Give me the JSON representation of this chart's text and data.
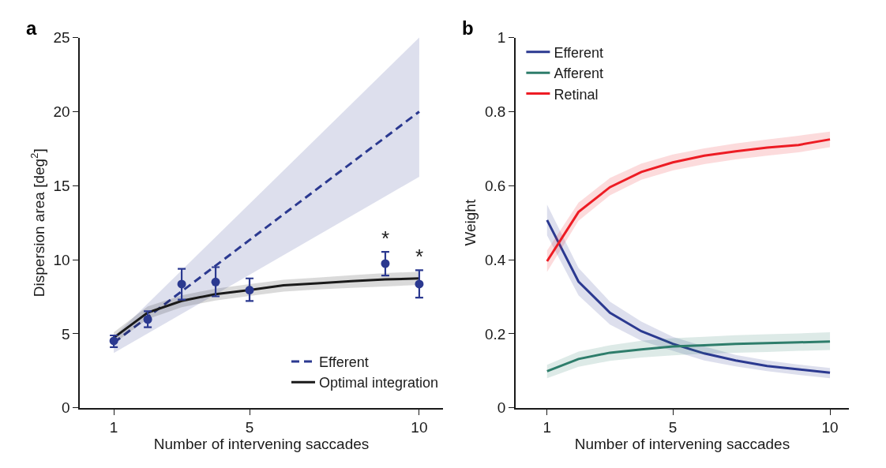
{
  "chart_data": [
    {
      "type": "line",
      "title": "a",
      "xlabel": "Number of intervening saccades",
      "ylabel": "Dispersion area [deg$^{2}$]",
      "xlim": [
        0,
        10.7
      ],
      "xticks": [
        1,
        5,
        10
      ],
      "ylim": [
        0,
        25
      ],
      "yticks": [
        0,
        5,
        10,
        15,
        20,
        25
      ],
      "legend": "bottom right",
      "series": [
        {
          "name": "Efferent",
          "type": "line",
          "line_style": "dashed",
          "color": "#2b3990",
          "x": [
            1,
            10
          ],
          "values": [
            4.4,
            20
          ],
          "lower": [
            3.7,
            15.6
          ],
          "upper": [
            4.8,
            25
          ]
        },
        {
          "name": "Optimal integration",
          "type": "line",
          "line_style": "solid",
          "color": "#1a1a1a",
          "x": [
            1,
            2,
            3,
            4,
            5,
            6,
            7,
            8,
            9,
            10
          ],
          "values": [
            4.74,
            6.43,
            7.22,
            7.68,
            7.95,
            8.27,
            8.41,
            8.56,
            8.67,
            8.74
          ],
          "lower": [
            4.35,
            6.0,
            6.8,
            7.25,
            7.55,
            7.85,
            8.0,
            8.1,
            8.2,
            8.3
          ],
          "upper": [
            5.1,
            6.85,
            7.6,
            8.05,
            8.35,
            8.65,
            8.8,
            8.95,
            9.1,
            9.2
          ]
        },
        {
          "type": "scatter",
          "marker": "circle",
          "color": "#2b3990",
          "x": [
            1,
            2,
            3,
            4,
            5,
            9,
            10
          ],
          "values": [
            4.52,
            5.97,
            8.36,
            8.5,
            7.95,
            9.74,
            8.36
          ],
          "errors": [
            [
              4.1,
              4.89
            ],
            [
              5.44,
              6.52
            ],
            [
              7.31,
              9.39
            ],
            [
              7.53,
              9.5
            ],
            [
              7.22,
              8.74
            ],
            [
              8.93,
              10.53
            ],
            [
              7.44,
              9.29
            ]
          ]
        }
      ],
      "annotations": [
        {
          "text": "*",
          "x": 9,
          "y": 10.53
        },
        {
          "text": "*",
          "x": 10,
          "y": 9.29
        }
      ]
    },
    {
      "type": "line",
      "title": "b",
      "xlabel": "Number of intervening saccades",
      "ylabel": "Weight",
      "xlim": [
        0,
        10.6
      ],
      "xticks": [
        1,
        5,
        10
      ],
      "ylim": [
        0,
        1
      ],
      "yticks": [
        0,
        0.2,
        0.4,
        0.6,
        0.8,
        1
      ],
      "legend": "top left",
      "x": [
        1,
        2,
        3,
        4,
        5,
        6,
        7,
        8,
        9,
        10
      ],
      "series": [
        {
          "name": "Efferent",
          "color": "#2b3990",
          "values": [
            0.507,
            0.341,
            0.257,
            0.207,
            0.173,
            0.147,
            0.128,
            0.113,
            0.104,
            0.095
          ],
          "lower": [
            0.466,
            0.304,
            0.225,
            0.181,
            0.154,
            0.128,
            0.112,
            0.099,
            0.089,
            0.08
          ],
          "upper": [
            0.549,
            0.378,
            0.287,
            0.233,
            0.192,
            0.166,
            0.143,
            0.128,
            0.117,
            0.108
          ]
        },
        {
          "name": "Afferent",
          "color": "#2e7d6b",
          "values": [
            0.099,
            0.132,
            0.149,
            0.158,
            0.166,
            0.169,
            0.173,
            0.175,
            0.177,
            0.179
          ],
          "lower": [
            0.08,
            0.111,
            0.127,
            0.136,
            0.142,
            0.146,
            0.149,
            0.151,
            0.154,
            0.156
          ],
          "upper": [
            0.116,
            0.152,
            0.169,
            0.181,
            0.188,
            0.192,
            0.196,
            0.199,
            0.201,
            0.204
          ]
        },
        {
          "name": "Retinal",
          "color": "#ed1c24",
          "values": [
            0.396,
            0.529,
            0.596,
            0.637,
            0.663,
            0.681,
            0.693,
            0.703,
            0.71,
            0.725
          ],
          "lower": [
            0.367,
            0.505,
            0.574,
            0.616,
            0.641,
            0.658,
            0.671,
            0.681,
            0.69,
            0.704
          ],
          "upper": [
            0.425,
            0.554,
            0.621,
            0.66,
            0.684,
            0.701,
            0.714,
            0.725,
            0.735,
            0.746
          ]
        }
      ]
    }
  ]
}
